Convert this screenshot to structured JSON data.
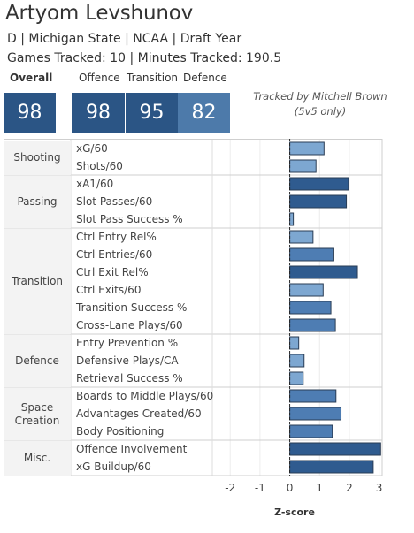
{
  "player": {
    "name": "Artyom Levshunov",
    "info_line": "D | Michigan State | NCAA | Draft Year",
    "tracking_line": "Games Tracked: 10 | Minutes Tracked: 190.5"
  },
  "scores": {
    "overall_label": "Overall",
    "overall_value": "98",
    "offence_label": "Offence",
    "offence_value": "98",
    "transition_label": "Transition",
    "transition_value": "95",
    "defence_label": "Defence",
    "defence_value": "82"
  },
  "credits": {
    "line1": "Tracked by Mitchell Brown",
    "line2": "(5v5 only)"
  },
  "colors": {
    "box_dark": "#2b5585",
    "box_light": "#4d7aaa",
    "bar_dark": "#2f5b8f",
    "bar_mid": "#4e7db3",
    "bar_light": "#7da7d1"
  },
  "chart_data": {
    "type": "bar",
    "orientation": "horizontal",
    "xlabel": "Z-score",
    "xlim": [
      -2.6,
      3.1
    ],
    "xticks": [
      "-2",
      "-1",
      "0",
      "1",
      "2",
      "3"
    ],
    "groups": [
      {
        "name": "Shooting",
        "metrics": [
          {
            "label": "xG/60",
            "value": 1.15
          },
          {
            "label": "Shots/60",
            "value": 0.88
          }
        ]
      },
      {
        "name": "Passing",
        "metrics": [
          {
            "label": "xA1/60",
            "value": 1.97
          },
          {
            "label": "Slot Passes/60",
            "value": 1.9
          },
          {
            "label": "Slot Pass Success %",
            "value": 0.12
          }
        ]
      },
      {
        "name": "Transition",
        "metrics": [
          {
            "label": "Ctrl Entry Rel%",
            "value": 0.78
          },
          {
            "label": "Ctrl Entries/60",
            "value": 1.48
          },
          {
            "label": "Ctrl Exit Rel%",
            "value": 2.27
          },
          {
            "label": "Ctrl Exits/60",
            "value": 1.12
          },
          {
            "label": "Transition Success %",
            "value": 1.38
          },
          {
            "label": "Cross-Lane Plays/60",
            "value": 1.53
          }
        ]
      },
      {
        "name": "Defence",
        "metrics": [
          {
            "label": "Entry Prevention %",
            "value": 0.3
          },
          {
            "label": "Defensive Plays/CA",
            "value": 0.48
          },
          {
            "label": "Retrieval Success %",
            "value": 0.45
          }
        ]
      },
      {
        "name": "Space Creation",
        "metrics": [
          {
            "label": "Boards to Middle Plays/60",
            "value": 1.55
          },
          {
            "label": "Advantages Created/60",
            "value": 1.72
          },
          {
            "label": "Body Positioning",
            "value": 1.43
          }
        ]
      },
      {
        "name": "Misc.",
        "metrics": [
          {
            "label": "Offence Involvement",
            "value": 3.05
          },
          {
            "label": "xG Buildup/60",
            "value": 2.8
          }
        ]
      }
    ]
  }
}
